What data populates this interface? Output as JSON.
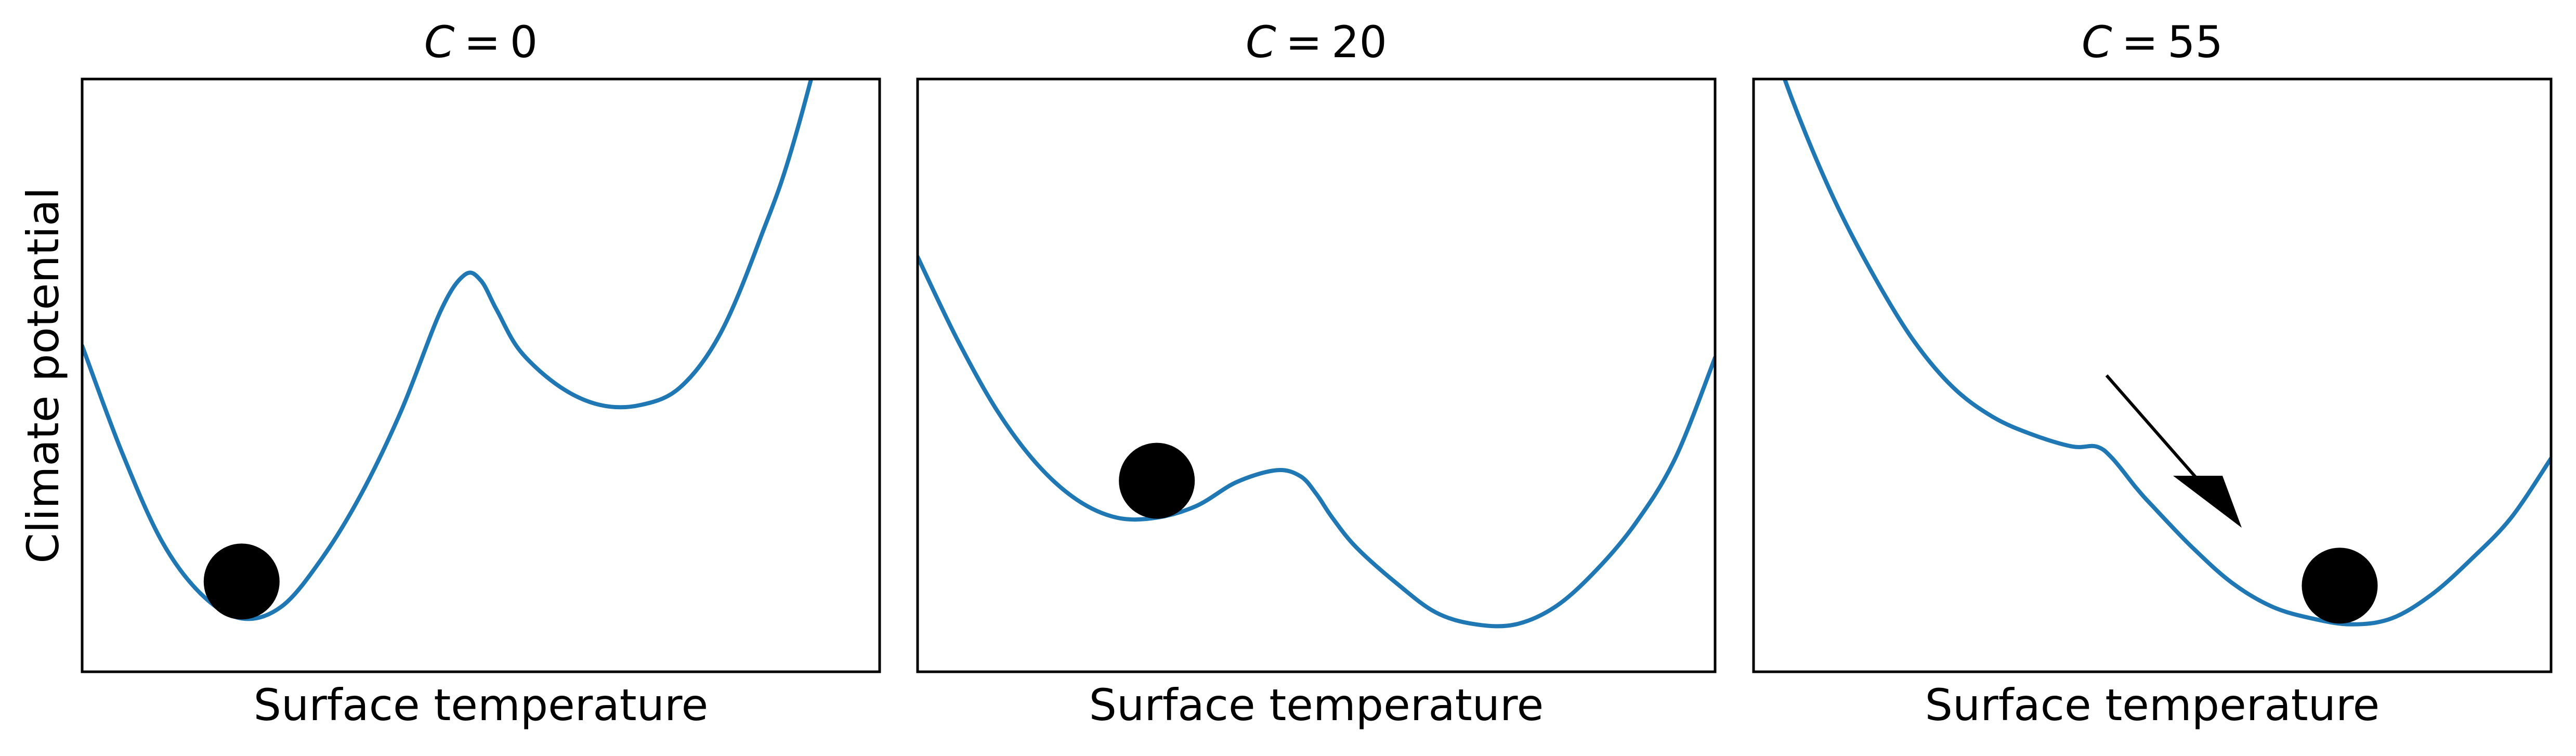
{
  "chart_data": {
    "type": "line",
    "ylabel": "Climate potential",
    "panels": [
      {
        "title": "C = 0",
        "title_var": "C",
        "title_value": "0",
        "xlabel": "Surface temperature",
        "x": [
          0,
          0.05,
          0.1,
          0.15,
          0.2,
          0.25,
          0.3,
          0.35,
          0.4,
          0.45,
          0.48,
          0.5,
          0.52,
          0.55,
          0.6,
          0.65,
          0.7,
          0.75,
          0.8,
          0.85,
          0.9,
          1.0
        ],
        "y": [
          0.55,
          0.37,
          0.22,
          0.13,
          0.09,
          0.11,
          0.19,
          0.3,
          0.44,
          0.61,
          0.67,
          0.66,
          0.61,
          0.54,
          0.48,
          0.45,
          0.45,
          0.48,
          0.57,
          0.73,
          0.93,
          1.45
        ],
        "ball_x": 0.2,
        "arrow": false,
        "ylim": [
          0,
          1
        ]
      },
      {
        "title": "C = 20",
        "title_var": "C",
        "title_value": "20",
        "xlabel": "Surface temperature",
        "x": [
          0,
          0.05,
          0.1,
          0.15,
          0.2,
          0.25,
          0.3,
          0.35,
          0.4,
          0.45,
          0.48,
          0.5,
          0.52,
          0.55,
          0.6,
          0.65,
          0.7,
          0.75,
          0.8,
          0.85,
          0.9,
          0.95,
          1.0
        ],
        "y": [
          0.7,
          0.56,
          0.44,
          0.35,
          0.29,
          0.26,
          0.26,
          0.28,
          0.32,
          0.34,
          0.33,
          0.3,
          0.26,
          0.21,
          0.15,
          0.1,
          0.08,
          0.08,
          0.11,
          0.17,
          0.25,
          0.36,
          0.53
        ],
        "ball_x": 0.3,
        "arrow": false,
        "ylim": [
          0,
          1
        ]
      },
      {
        "title": "C = 55",
        "title_var": "C",
        "title_value": "55",
        "xlabel": "Surface temperature",
        "x": [
          0,
          0.05,
          0.1,
          0.15,
          0.2,
          0.25,
          0.3,
          0.35,
          0.4,
          0.43,
          0.45,
          0.48,
          0.5,
          0.55,
          0.6,
          0.65,
          0.7,
          0.75,
          0.8,
          0.85,
          0.9,
          0.95,
          1.0
        ],
        "y": [
          1.15,
          0.96,
          0.8,
          0.67,
          0.56,
          0.48,
          0.43,
          0.4,
          0.38,
          0.38,
          0.36,
          0.31,
          0.28,
          0.21,
          0.15,
          0.11,
          0.09,
          0.08,
          0.09,
          0.13,
          0.19,
          0.26,
          0.36
        ],
        "ball_x": 0.735,
        "arrow": true,
        "ylim": [
          0,
          1
        ]
      }
    ]
  }
}
